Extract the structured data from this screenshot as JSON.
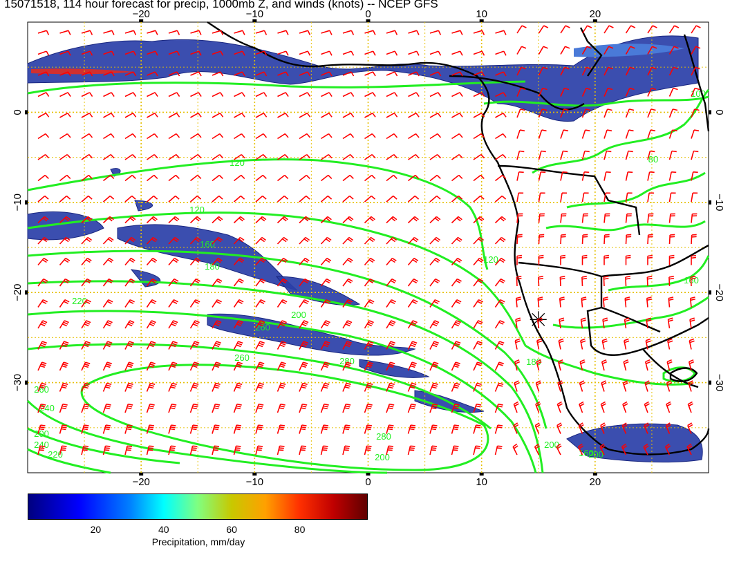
{
  "title": "15071518, 114 hour forecast for precip, 1000mb Z, and winds (knots) -- NCEP GFS",
  "map": {
    "lon_range": [
      -30,
      30
    ],
    "lat_range": [
      -40,
      10
    ],
    "top_lon_ticks": [
      {
        "lon": -20,
        "label": "−20"
      },
      {
        "lon": -10,
        "label": "−10"
      },
      {
        "lon": 0,
        "label": "0"
      },
      {
        "lon": 10,
        "label": "10"
      },
      {
        "lon": 20,
        "label": "20"
      }
    ],
    "bottom_lon_ticks": [
      {
        "lon": -20,
        "label": "−20"
      },
      {
        "lon": -10,
        "label": "−10"
      },
      {
        "lon": 0,
        "label": "0"
      },
      {
        "lon": 10,
        "label": "10"
      },
      {
        "lon": 20,
        "label": "20"
      }
    ],
    "lat_ticks": [
      {
        "lat": 0,
        "label": "0"
      },
      {
        "lat": -10,
        "label": "−10"
      },
      {
        "lat": -20,
        "label": "−20"
      },
      {
        "lat": -30,
        "label": "−30"
      }
    ],
    "contour_labels": [
      "120",
      "120",
      "160",
      "180",
      "200",
      "220",
      "240",
      "260",
      "260",
      "280",
      "280",
      "200",
      "200",
      "240",
      "220",
      "160",
      "180",
      "120",
      "80",
      "100",
      "160",
      "200",
      "200",
      "260"
    ],
    "colors": {
      "contour": "#22ee22",
      "wind_barb": "#ff0000",
      "grid": "#e6c000",
      "coast": "#000000"
    }
  },
  "colorbar": {
    "title": "Precipitation, mm/day",
    "ticks": [
      {
        "value": 20,
        "label": "20"
      },
      {
        "value": 40,
        "label": "40"
      },
      {
        "value": 60,
        "label": "60"
      },
      {
        "value": 80,
        "label": "80"
      }
    ],
    "range": [
      0,
      100
    ]
  }
}
